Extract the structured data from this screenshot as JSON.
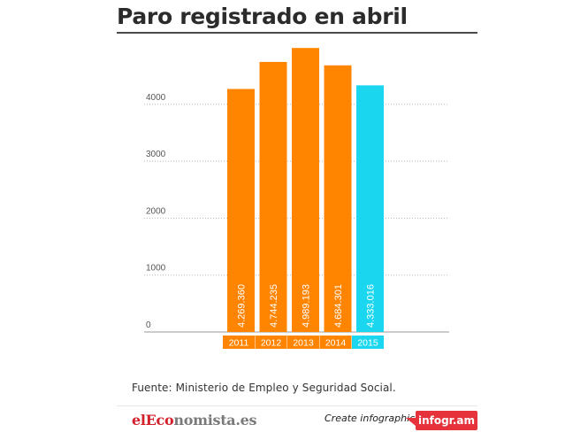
{
  "title": "Paro registrado en abril",
  "source": "Fuente: Ministerio de Empleo y Seguridad Social.",
  "footer": {
    "brand_red": "elEco",
    "brand_gray": "nomista.es",
    "create_label": "Create infographics",
    "infogram_label": "infogr.am"
  },
  "colors": {
    "highlight": "#ff8400",
    "current": "#1ad7ef",
    "grid": "#b8b8b8",
    "axis_text": "#555555"
  },
  "chart_data": {
    "type": "bar",
    "title": "Paro registrado en abril",
    "xlabel": "",
    "ylabel": "",
    "ylim": [
      0,
      5000
    ],
    "yticks": [
      0,
      1000,
      2000,
      3000,
      4000
    ],
    "grid": true,
    "categories": [
      "2011",
      "2012",
      "2013",
      "2014",
      "2015"
    ],
    "values": [
      4269.36,
      4744.235,
      4989.193,
      4684.301,
      4333.016
    ],
    "value_labels": [
      "4.269.360",
      "4.744.235",
      "4.989.193",
      "4.684.301",
      "4.333.016"
    ],
    "bar_colors": [
      "#ff8400",
      "#ff8400",
      "#ff8400",
      "#ff8400",
      "#1ad7ef"
    ]
  }
}
